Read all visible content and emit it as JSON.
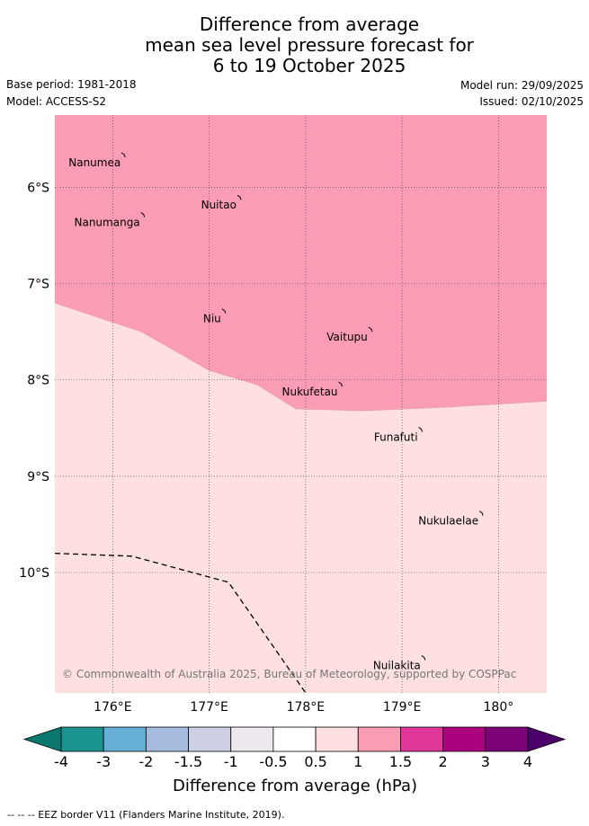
{
  "title": {
    "line1": "Difference from average",
    "line2": "mean sea level pressure forecast for",
    "line3": "6 to 19 October 2025"
  },
  "meta": {
    "base_period": "Base period: 1981-2018",
    "model": "Model: ACCESS-S2",
    "model_run": "Model run: 29/09/2025",
    "issued": "Issued: 02/10/2025"
  },
  "map": {
    "lon_range": [
      175.4,
      180.5
    ],
    "lat_range": [
      -11.25,
      -5.25
    ],
    "lon_ticks": [
      {
        "value": 176,
        "label": "176°E"
      },
      {
        "value": 177,
        "label": "177°E"
      },
      {
        "value": 178,
        "label": "178°E"
      },
      {
        "value": 179,
        "label": "179°E"
      },
      {
        "value": 180,
        "label": "180°"
      }
    ],
    "lat_ticks": [
      {
        "value": -6,
        "label": "6°S"
      },
      {
        "value": -7,
        "label": "7°S"
      },
      {
        "value": -8,
        "label": "8°S"
      },
      {
        "value": -9,
        "label": "9°S"
      },
      {
        "value": -10,
        "label": "10°S"
      }
    ],
    "fill_colors": {
      "band_1_to_1_5": "#f99cb4",
      "band_0_5_to_1": "#fde0df"
    },
    "contour_1_0_hpa": [
      [
        175.4,
        -7.2
      ],
      [
        176.3,
        -7.5
      ],
      [
        177.0,
        -7.9
      ],
      [
        177.5,
        -8.05
      ],
      [
        177.9,
        -8.3
      ],
      [
        178.6,
        -8.32
      ],
      [
        179.5,
        -8.28
      ],
      [
        180.5,
        -8.22
      ]
    ],
    "eez_border": [
      [
        175.4,
        -9.8
      ],
      [
        176.2,
        -9.83
      ],
      [
        177.2,
        -10.1
      ],
      [
        178.0,
        -11.25
      ]
    ],
    "islands": [
      {
        "name": "Nanumea",
        "lon": 176.12,
        "lat": -5.67
      },
      {
        "name": "Nuitao",
        "lon": 177.32,
        "lat": -6.11
      },
      {
        "name": "Nanumanga",
        "lon": 176.32,
        "lat": -6.29
      },
      {
        "name": "Niu",
        "lon": 177.16,
        "lat": -7.29
      },
      {
        "name": "Vaitupu",
        "lon": 178.68,
        "lat": -7.48
      },
      {
        "name": "Nukufetau",
        "lon": 178.37,
        "lat": -8.05
      },
      {
        "name": "Funafuti",
        "lon": 179.2,
        "lat": -8.52
      },
      {
        "name": "Nukulaelae",
        "lon": 179.83,
        "lat": -9.39
      },
      {
        "name": "Nuilakita",
        "lon": 179.23,
        "lat": -10.89
      }
    ],
    "copyright": "© Commonwealth of Australia 2025, Bureau of Meteorology, supported by COSPPac"
  },
  "colorbar": {
    "ticks": [
      "-4",
      "-3",
      "-2",
      "-1.5",
      "-1",
      "-0.5",
      "0.5",
      "1",
      "1.5",
      "2",
      "3",
      "4"
    ],
    "colors": [
      "#1a9491",
      "#65aed5",
      "#a6bcde",
      "#cccfe6",
      "#ede9ef",
      "#ffffff",
      "#fde0df",
      "#f99cb4",
      "#e0389a",
      "#ac027e",
      "#7a0177"
    ],
    "under_color": "#0b776f",
    "over_color": "#4b006b",
    "title": "Difference from average (hPa)"
  },
  "footer": "-- -- -- EEZ border V11 (Flanders Marine Institute, 2019)."
}
